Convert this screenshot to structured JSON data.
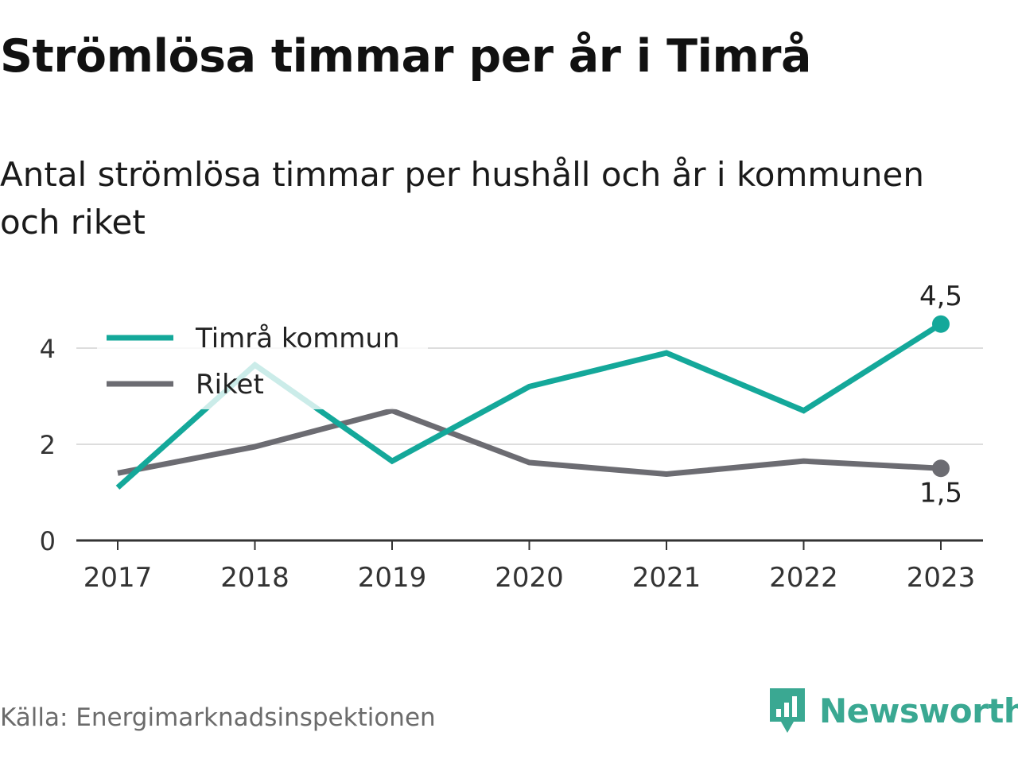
{
  "header": {
    "title": "Strömlösa timmar per år i Timrå",
    "subtitle": "Antal strömlösa timmar per hushåll och år i kommunen och riket"
  },
  "footer": {
    "source": "Källa: Energimarknadsinspektionen",
    "brand": "Newsworthy",
    "brand_icon": "newsworthy-logo-icon"
  },
  "colors": {
    "kommun": "#14a89a",
    "riket": "#6c6c72",
    "grid": "#dddddd",
    "axis": "#333333",
    "brand": "#3aa892"
  },
  "chart_data": {
    "type": "line",
    "categories": [
      "2017",
      "2018",
      "2019",
      "2020",
      "2021",
      "2022",
      "2023"
    ],
    "series": [
      {
        "name": "Timrå kommun",
        "values": [
          1.1,
          3.65,
          1.65,
          3.2,
          3.9,
          2.7,
          4.5
        ],
        "end_label": "4,5"
      },
      {
        "name": "Riket",
        "values": [
          1.4,
          1.95,
          2.7,
          1.62,
          1.38,
          1.65,
          1.5
        ],
        "end_label": "1,5"
      }
    ],
    "y_ticks": [
      "0",
      "2",
      "4"
    ],
    "ylim": [
      0,
      4.6
    ],
    "grid": true,
    "legend_position": "top-left"
  }
}
